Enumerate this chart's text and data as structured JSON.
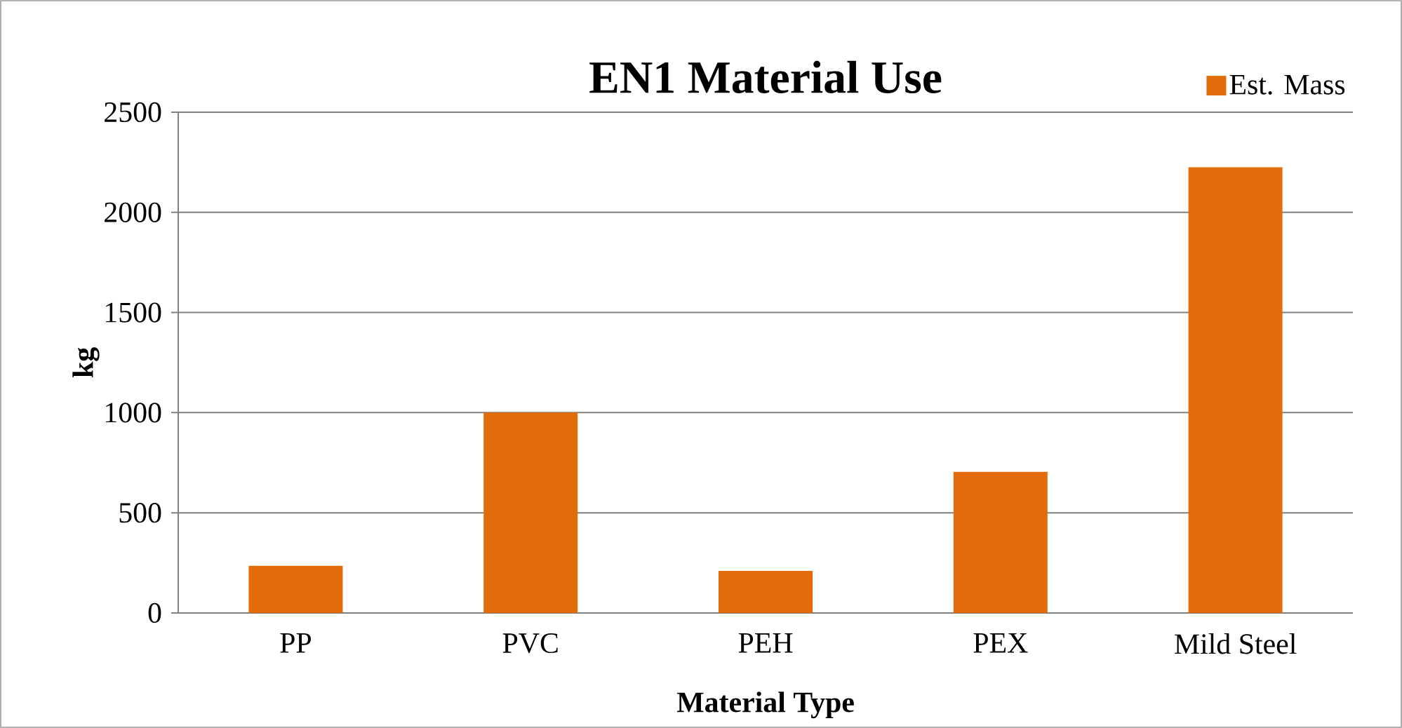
{
  "chart_data": {
    "type": "bar",
    "title": "EN1 Material Use",
    "xlabel": "Material Type",
    "ylabel": "kg",
    "categories": [
      "PP",
      "PVC",
      "PEH",
      "PEX",
      "Mild Steel"
    ],
    "series": [
      {
        "name": "Est. Mass",
        "color": "#e36c0a",
        "values": [
          235,
          1000,
          210,
          705,
          2225
        ]
      }
    ],
    "ylim": [
      0,
      2500
    ],
    "yticks": [
      0,
      500,
      1000,
      1500,
      2000,
      2500
    ],
    "grid": "y",
    "legend": "top right"
  }
}
